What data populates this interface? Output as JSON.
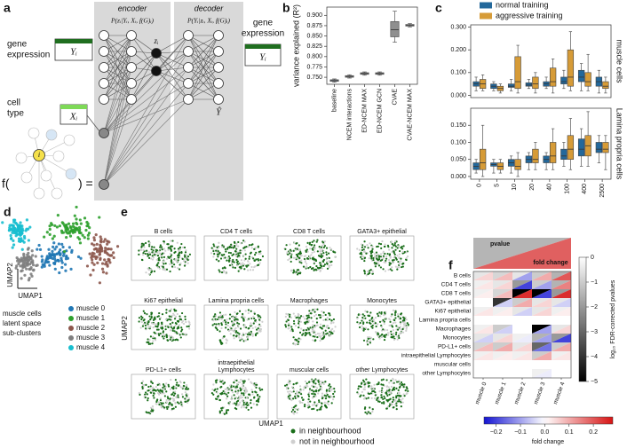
{
  "panel_labels": [
    "a",
    "b",
    "c",
    "d",
    "e",
    "f"
  ],
  "diagram": {
    "encoder": "encoder",
    "decoder": "decoder",
    "encoder_formula": "P(zᵢ|Yᵢ, Xᵢ, f(G)ᵢ)",
    "decoder_formula": "P(Yᵢ|zᵢ, Xᵢ, f(G)ᵢ)",
    "latent": "zᵢ",
    "reconstruction": "Ŷ",
    "input_label": [
      "gene",
      "expression"
    ],
    "input_symbol": "Yᵢ",
    "condition_label": [
      "cell",
      "type"
    ],
    "condition_symbol": "Xᵢ",
    "graph_open": "f(",
    "graph_close": ") =",
    "graph_node": "i",
    "output_label": [
      "gene",
      "expression"
    ],
    "output_symbol": "Yᵢ"
  },
  "chart_data": [
    {
      "type": "box",
      "ylabel": "variance explained (R²)",
      "categories": [
        "baseline",
        "NCEM interactions",
        "ED-NCEM MAX",
        "ED-NCEM GCN",
        "CVAE",
        "CVAE-NCEM MAX"
      ],
      "colors": [
        "#aeb9c6",
        "#b3b3b3",
        "#b3b3b3",
        "#b3b3b3",
        "#8f8f8f",
        "#b3b3b3"
      ],
      "values": [
        [
          0.738,
          0.74,
          0.742,
          0.744,
          0.746
        ],
        [
          0.748,
          0.75,
          0.752,
          0.754,
          0.756
        ],
        [
          0.755,
          0.757,
          0.759,
          0.761,
          0.763
        ],
        [
          0.755,
          0.757,
          0.759,
          0.761,
          0.763
        ],
        [
          0.835,
          0.848,
          0.865,
          0.885,
          0.91
        ],
        [
          0.872,
          0.874,
          0.876,
          0.878,
          0.88
        ]
      ],
      "ylim": [
        0.733,
        0.92
      ],
      "yticks": [
        {
          "value": 0.75,
          "label": "0.750"
        },
        0.775,
        {
          "value": 0.8,
          "label": "0.800"
        },
        0.825,
        {
          "value": 0.85,
          "label": "0.850"
        },
        0.875,
        {
          "value": 0.9,
          "label": "0.900"
        }
      ]
    },
    {
      "type": "box",
      "side_label": "muscle cells",
      "series": [
        {
          "name": "normal training",
          "color": "#23689b",
          "values": [
            [
              0.02,
              0.04,
              0.05,
              0.06,
              0.08
            ],
            [
              0.02,
              0.03,
              0.04,
              0.05,
              0.06
            ],
            [
              0.02,
              0.035,
              0.04,
              0.05,
              0.07
            ],
            [
              0.03,
              0.04,
              0.045,
              0.055,
              0.07
            ],
            [
              0.03,
              0.04,
              0.05,
              0.06,
              0.08
            ],
            [
              0.03,
              0.05,
              0.06,
              0.08,
              0.11
            ],
            [
              0.02,
              0.06,
              0.08,
              0.11,
              0.14
            ],
            [
              0.01,
              0.04,
              0.06,
              0.08,
              0.11
            ]
          ]
        },
        {
          "name": "aggressive training",
          "color": "#d69b37",
          "values": [
            [
              0.02,
              0.03,
              0.05,
              0.07,
              0.09
            ],
            [
              0.01,
              0.02,
              0.03,
              0.04,
              0.05
            ],
            [
              0.01,
              0.03,
              0.06,
              0.17,
              0.22
            ],
            [
              0.01,
              0.03,
              0.05,
              0.08,
              0.1
            ],
            [
              0.01,
              0.04,
              0.06,
              0.12,
              0.16
            ],
            [
              0.02,
              0.04,
              0.08,
              0.2,
              0.28
            ],
            [
              0.02,
              0.04,
              0.06,
              0.1,
              0.18
            ],
            [
              0.01,
              0.03,
              0.04,
              0.06,
              0.08
            ]
          ]
        }
      ],
      "ylim": [
        -0.01,
        0.31
      ],
      "yticks": [
        {
          "value": 0,
          "label": "0.000"
        },
        {
          "value": 0.1,
          "label": "0.100"
        },
        {
          "value": 0.2,
          "label": "0.200"
        },
        {
          "value": 0.3,
          "label": "0.300"
        }
      ]
    },
    {
      "type": "box",
      "side_label": "Lamina propria cells",
      "categories": [
        "0",
        "5",
        "10",
        "20",
        "40",
        "100",
        "400",
        "2500"
      ],
      "series": [
        {
          "color": "#23689b",
          "values": [
            [
              0.01,
              0.02,
              0.03,
              0.04,
              0.05
            ],
            [
              0.01,
              0.03,
              0.035,
              0.04,
              0.05
            ],
            [
              0.01,
              0.03,
              0.04,
              0.05,
              0.06
            ],
            [
              0.02,
              0.04,
              0.05,
              0.06,
              0.07
            ],
            [
              0.02,
              0.04,
              0.05,
              0.06,
              0.07
            ],
            [
              0.03,
              0.05,
              0.06,
              0.08,
              0.1
            ],
            [
              0.03,
              0.06,
              0.08,
              0.11,
              0.14
            ],
            [
              0.04,
              0.07,
              0.08,
              0.1,
              0.12
            ]
          ]
        },
        {
          "color": "#d69b37",
          "values": [
            [
              0.0,
              0.02,
              0.04,
              0.08,
              0.15
            ],
            [
              0.01,
              0.02,
              0.03,
              0.04,
              0.05
            ],
            [
              0.0,
              0.02,
              0.03,
              0.05,
              0.07
            ],
            [
              0.02,
              0.04,
              0.05,
              0.08,
              0.1
            ],
            [
              0.02,
              0.04,
              0.06,
              0.1,
              0.14
            ],
            [
              0.02,
              0.05,
              0.08,
              0.12,
              0.17
            ],
            [
              0.03,
              0.06,
              0.09,
              0.12,
              0.19
            ],
            [
              0.02,
              0.07,
              0.08,
              0.1,
              0.12
            ]
          ]
        }
      ],
      "ylim": [
        -0.008,
        0.2
      ],
      "yticks": [
        {
          "value": 0,
          "label": "0.000"
        },
        {
          "value": 0.05,
          "label": "0.050"
        },
        {
          "value": 0.1,
          "label": "0.100"
        },
        {
          "value": 0.15,
          "label": "0.150"
        }
      ]
    },
    {
      "type": "scatter",
      "xlabel": "UMAP1",
      "ylabel": "UMAP2",
      "legend_title": [
        "muscle cells",
        "latent space",
        "sub-clusters"
      ],
      "categories": [
        "muscle 0",
        "muscle 1",
        "muscle 2",
        "muscle 3",
        "muscle 4"
      ],
      "colors": [
        "#1f77b4",
        "#2ca02c",
        "#8c564b",
        "#7f7f7f",
        "#17becf"
      ]
    },
    {
      "type": "scatter_grid",
      "xlabel": "UMAP1",
      "ylabel": "UMAP2",
      "titles": [
        "B cells",
        "CD4 T cells",
        "CD8 T cells",
        "GATA3+ epithelial",
        "Ki67 epithelial",
        "Lamina propria cells",
        "Macrophages",
        "Monocytes",
        "PD-L1+ cells",
        [
          "intraepithelial",
          "Lymphocytes"
        ],
        "muscular cells",
        "other Lymphocytes"
      ],
      "legend": [
        "in neighbourhood",
        "not in neighbourhood"
      ],
      "colors": [
        "#1a6e1a",
        "#cfcfcf"
      ]
    },
    {
      "type": "heatmap",
      "rows": [
        "B cells",
        "CD4 T cells",
        "CD8 T cells",
        "GATA3+ epithelial",
        "Ki67 epithelial",
        "Lamina propria cells",
        "Macrophages",
        "Monocytes",
        "PD-L1+ cells",
        "intraepithelial Lymphocytes",
        "muscular cells",
        "other Lymphocytes"
      ],
      "columns": [
        "muscle 0",
        "muscle 1",
        "muscle 2",
        "muscle 3",
        "muscle 4"
      ],
      "header": [
        "pvalue",
        "fold change"
      ],
      "pvalue": [
        [
          -0.5,
          -0.8,
          -0.5,
          -1,
          -1.5
        ],
        [
          -0.3,
          -0.5,
          -2,
          -1,
          -1.5
        ],
        [
          -0.3,
          -0.8,
          -5,
          -5,
          -2
        ],
        [
          null,
          -4,
          -1,
          -0.5,
          -0.5
        ],
        [
          -0.3,
          -0.3,
          -0.5,
          -0.5,
          -0.3
        ],
        [
          null,
          null,
          null,
          null,
          null
        ],
        [
          -0.3,
          -1,
          null,
          -5,
          -0.5
        ],
        [
          -0.5,
          -0.5,
          -0.3,
          -1.5,
          -2
        ],
        [
          -0.8,
          -1,
          -0.5,
          -3,
          -1
        ],
        [
          -0.3,
          -0.3,
          -0.3,
          -1,
          -0.3
        ],
        [
          null,
          null,
          null,
          null,
          null
        ],
        [
          null,
          null,
          null,
          -0.3,
          null
        ]
      ],
      "fold_change": [
        [
          0.05,
          0.08,
          -0.1,
          0.1,
          0.2
        ],
        [
          0.03,
          0.05,
          -0.2,
          -0.1,
          0.15
        ],
        [
          0.02,
          0.08,
          0.25,
          -0.2,
          0.25
        ],
        [
          null,
          -0.05,
          0.1,
          0.05,
          -0.05
        ],
        [
          0.03,
          0.02,
          -0.05,
          0.05,
          0.02
        ],
        [
          null,
          null,
          null,
          null,
          null
        ],
        [
          0.03,
          -0.05,
          null,
          -0.1,
          0.05
        ],
        [
          -0.05,
          0.05,
          -0.02,
          -0.1,
          -0.2
        ],
        [
          0.08,
          0.1,
          0.05,
          -0.15,
          0.1
        ],
        [
          0.03,
          0.02,
          0.03,
          0.1,
          0.03
        ],
        [
          null,
          null,
          null,
          null,
          null
        ],
        [
          null,
          null,
          null,
          -0.02,
          null
        ]
      ],
      "pvalue_colorbar": {
        "label": "log₁₀ FDR-corrected pvalues",
        "lim": [
          -5,
          0
        ],
        "ticks": [
          0,
          {
            "value": -1,
            "label": "−1"
          },
          {
            "value": -2,
            "label": "−2"
          },
          {
            "value": -3,
            "label": "−3"
          },
          {
            "value": -4,
            "label": "−4"
          },
          {
            "value": -5,
            "label": "−5"
          }
        ]
      },
      "fold_change_colorbar": {
        "label": "fold change",
        "lim": [
          -0.25,
          0.28
        ],
        "ticks": [
          {
            "value": -0.2,
            "label": "−0.2"
          },
          {
            "value": -0.1,
            "label": "−0.1"
          },
          {
            "value": 0,
            "label": "0.0"
          },
          0.1,
          0.2
        ]
      }
    }
  ]
}
